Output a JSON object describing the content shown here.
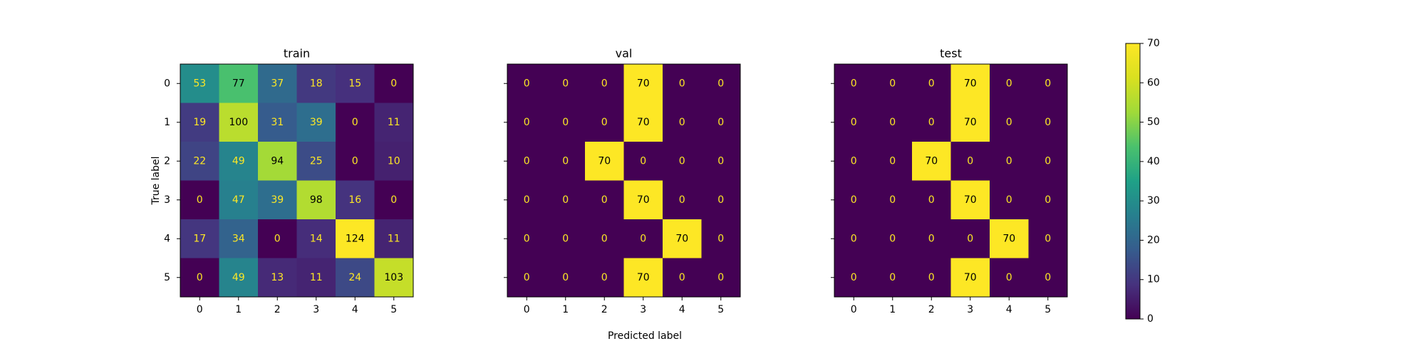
{
  "chart_data": [
    {
      "type": "heatmap",
      "title": "train",
      "xlabel": "",
      "ylabel": "True label",
      "x_ticks": [
        "0",
        "1",
        "2",
        "3",
        "4",
        "5"
      ],
      "y_ticks": [
        "0",
        "1",
        "2",
        "3",
        "4",
        "5"
      ],
      "values": [
        [
          53,
          77,
          37,
          18,
          15,
          0
        ],
        [
          19,
          100,
          31,
          39,
          0,
          11
        ],
        [
          22,
          49,
          94,
          25,
          0,
          10
        ],
        [
          0,
          47,
          39,
          98,
          16,
          0
        ],
        [
          17,
          34,
          0,
          14,
          124,
          11
        ],
        [
          0,
          49,
          13,
          11,
          24,
          103
        ]
      ],
      "color_range": [
        0,
        124
      ]
    },
    {
      "type": "heatmap",
      "title": "val",
      "xlabel": "",
      "ylabel": "",
      "x_ticks": [
        "0",
        "1",
        "2",
        "3",
        "4",
        "5"
      ],
      "y_ticks": [],
      "values": [
        [
          0,
          0,
          0,
          70,
          0,
          0
        ],
        [
          0,
          0,
          0,
          70,
          0,
          0
        ],
        [
          0,
          0,
          70,
          0,
          0,
          0
        ],
        [
          0,
          0,
          0,
          70,
          0,
          0
        ],
        [
          0,
          0,
          0,
          0,
          70,
          0
        ],
        [
          0,
          0,
          0,
          70,
          0,
          0
        ]
      ],
      "color_range": [
        0,
        70
      ]
    },
    {
      "type": "heatmap",
      "title": "test",
      "xlabel": "",
      "ylabel": "",
      "x_ticks": [
        "0",
        "1",
        "2",
        "3",
        "4",
        "5"
      ],
      "y_ticks": [],
      "values": [
        [
          0,
          0,
          0,
          70,
          0,
          0
        ],
        [
          0,
          0,
          0,
          70,
          0,
          0
        ],
        [
          0,
          0,
          70,
          0,
          0,
          0
        ],
        [
          0,
          0,
          0,
          70,
          0,
          0
        ],
        [
          0,
          0,
          0,
          0,
          70,
          0
        ],
        [
          0,
          0,
          0,
          70,
          0,
          0
        ]
      ],
      "color_range": [
        0,
        70
      ]
    }
  ],
  "shared_xlabel": "Predicted label",
  "colorbar": {
    "range": [
      0,
      70
    ],
    "ticks": [
      "0",
      "10",
      "20",
      "30",
      "40",
      "50",
      "60",
      "70"
    ],
    "colormap": "viridis"
  },
  "colors": {
    "viridis_low": "#440154",
    "viridis_high": "#fde725",
    "text_dark": "#000000",
    "text_light": "#fde725"
  }
}
